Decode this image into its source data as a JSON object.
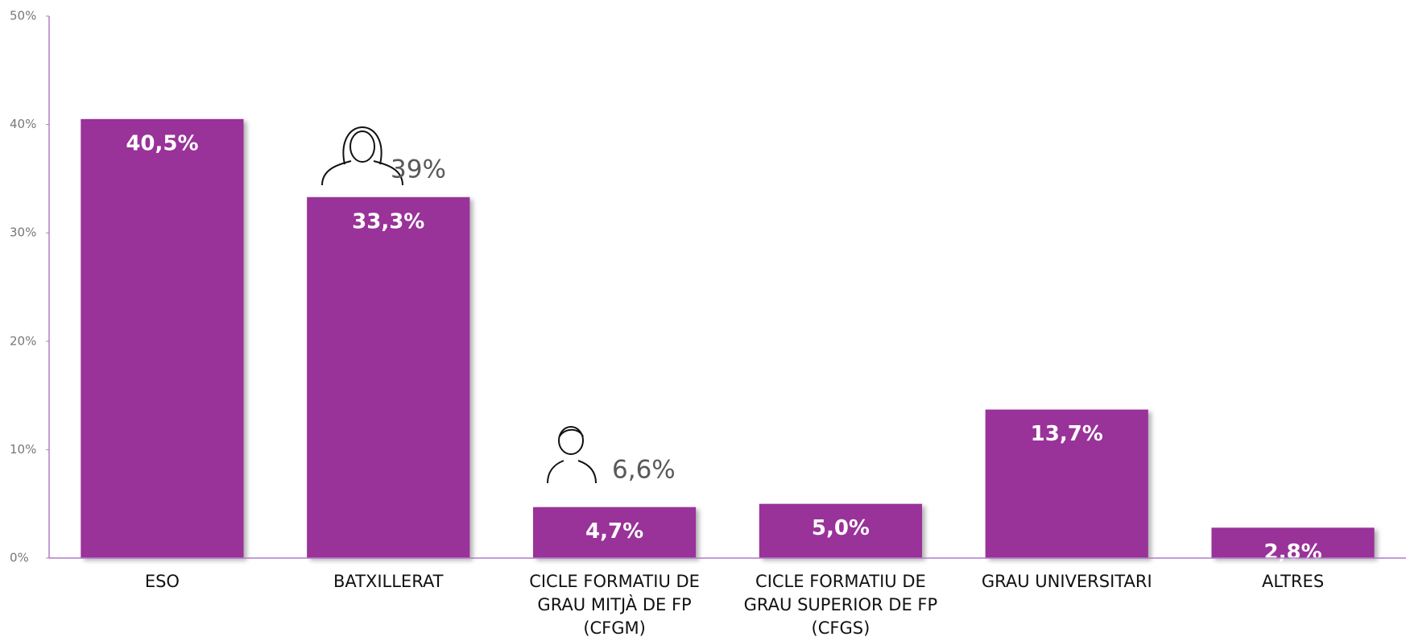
{
  "chart_data": {
    "type": "bar",
    "categories": [
      "ESO",
      "BATXILLERAT",
      "CICLE FORMATIU DE GRAU MITJÀ DE FP (CFGM)",
      "CICLE FORMATIU DE GRAU SUPERIOR DE FP (CFGS)",
      "GRAU UNIVERSITARI",
      "ALTRES"
    ],
    "values": [
      40.5,
      33.3,
      4.7,
      5.0,
      13.7,
      2.8
    ],
    "value_labels": [
      "40,5%",
      "33,3%",
      "4,7%",
      "5,0%",
      "13,7%",
      "2,8%"
    ],
    "color": "#993399",
    "ylim": [
      0,
      50
    ],
    "yticks": [
      {
        "value": 0,
        "label": "0%"
      },
      {
        "value": 10,
        "label": "10%"
      },
      {
        "value": 20,
        "label": "20%"
      },
      {
        "value": 30,
        "label": "30%"
      },
      {
        "value": 40,
        "label": "40%"
      },
      {
        "value": 50,
        "label": "50%"
      }
    ],
    "annotations": [
      {
        "text": "39%"
      },
      {
        "text": "6,6%"
      }
    ]
  }
}
